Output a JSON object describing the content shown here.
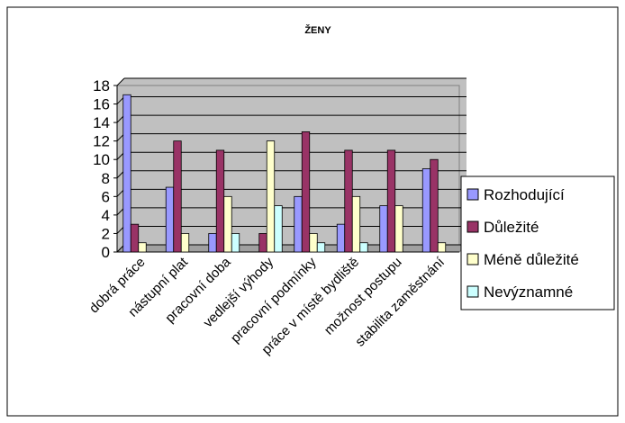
{
  "chart_data": {
    "type": "bar",
    "title": "ŽENY",
    "xlabel": "",
    "ylabel": "",
    "ylim": [
      0,
      18
    ],
    "yticks": [
      0,
      2,
      4,
      6,
      8,
      10,
      12,
      14,
      16,
      18
    ],
    "grid": true,
    "legend_position": "right",
    "plot_background": "#c0c0c0",
    "categories": [
      "dobrá práce",
      "nástupní plat",
      "pracovní doba",
      "vedlejší výhody",
      "pracovní podmínky",
      "práce v místě bydliště",
      "možnost postupu",
      "stabilita zaměstnání"
    ],
    "series": [
      {
        "name": "Rozhodující",
        "color": "#9999ff",
        "values": [
          17,
          7,
          2,
          0,
          6,
          3,
          5,
          9
        ]
      },
      {
        "name": "Důležité",
        "color": "#993366",
        "values": [
          3,
          12,
          11,
          2,
          13,
          11,
          11,
          10
        ]
      },
      {
        "name": "Méně důležité",
        "color": "#ffffcc",
        "values": [
          1,
          2,
          6,
          12,
          2,
          6,
          5,
          1
        ]
      },
      {
        "name": "Nevýznamné",
        "color": "#ccffff",
        "values": [
          0,
          0,
          2,
          5,
          1,
          1,
          0,
          0
        ]
      }
    ]
  }
}
